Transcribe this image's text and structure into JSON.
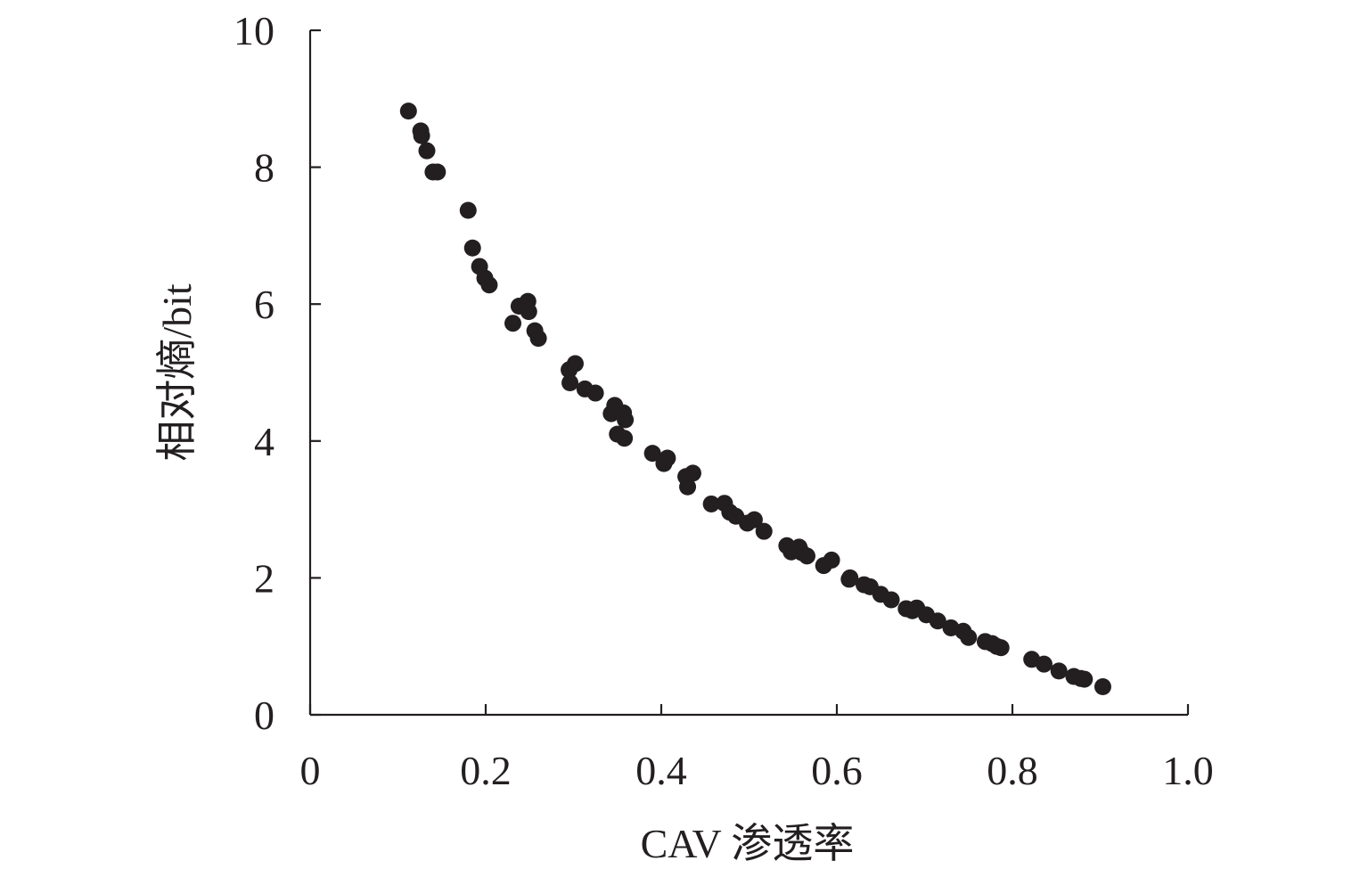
{
  "chart_data": {
    "type": "scatter",
    "title": "",
    "xlabel": "CAV 渗透率",
    "ylabel": "相对熵/bit",
    "xlim": [
      0,
      1.0
    ],
    "ylim": [
      0,
      10
    ],
    "xticks": [
      "0",
      "0.2",
      "0.4",
      "0.6",
      "0.8",
      "1.0"
    ],
    "xtick_values": [
      0,
      0.2,
      0.4,
      0.6,
      0.8,
      1.0
    ],
    "yticks": [
      "0",
      "2",
      "4",
      "6",
      "8",
      "10"
    ],
    "ytick_values": [
      0,
      2,
      4,
      6,
      8,
      10
    ],
    "grid": false,
    "legend": "none",
    "marker_color": "#231f20",
    "series": [
      {
        "points": [
          [
            0.112,
            8.82
          ],
          [
            0.126,
            8.53
          ],
          [
            0.127,
            8.46
          ],
          [
            0.133,
            8.24
          ],
          [
            0.14,
            7.93
          ],
          [
            0.145,
            7.93
          ],
          [
            0.18,
            7.37
          ],
          [
            0.185,
            6.82
          ],
          [
            0.193,
            6.55
          ],
          [
            0.199,
            6.38
          ],
          [
            0.204,
            6.28
          ],
          [
            0.231,
            5.72
          ],
          [
            0.238,
            5.97
          ],
          [
            0.248,
            6.04
          ],
          [
            0.249,
            5.89
          ],
          [
            0.256,
            5.61
          ],
          [
            0.26,
            5.5
          ],
          [
            0.295,
            5.04
          ],
          [
            0.302,
            5.13
          ],
          [
            0.296,
            4.85
          ],
          [
            0.313,
            4.76
          ],
          [
            0.325,
            4.7
          ],
          [
            0.343,
            4.4
          ],
          [
            0.347,
            4.52
          ],
          [
            0.35,
            4.1
          ],
          [
            0.357,
            4.41
          ],
          [
            0.359,
            4.31
          ],
          [
            0.358,
            4.04
          ],
          [
            0.39,
            3.82
          ],
          [
            0.403,
            3.67
          ],
          [
            0.407,
            3.75
          ],
          [
            0.428,
            3.48
          ],
          [
            0.43,
            3.33
          ],
          [
            0.436,
            3.53
          ],
          [
            0.457,
            3.08
          ],
          [
            0.472,
            3.09
          ],
          [
            0.478,
            2.96
          ],
          [
            0.485,
            2.9
          ],
          [
            0.498,
            2.8
          ],
          [
            0.506,
            2.85
          ],
          [
            0.517,
            2.68
          ],
          [
            0.543,
            2.47
          ],
          [
            0.548,
            2.38
          ],
          [
            0.557,
            2.45
          ],
          [
            0.56,
            2.37
          ],
          [
            0.566,
            2.32
          ],
          [
            0.585,
            2.18
          ],
          [
            0.594,
            2.26
          ],
          [
            0.614,
            1.98
          ],
          [
            0.615,
            2.0
          ],
          [
            0.631,
            1.9
          ],
          [
            0.638,
            1.87
          ],
          [
            0.65,
            1.76
          ],
          [
            0.662,
            1.68
          ],
          [
            0.679,
            1.55
          ],
          [
            0.686,
            1.52
          ],
          [
            0.691,
            1.56
          ],
          [
            0.702,
            1.46
          ],
          [
            0.715,
            1.37
          ],
          [
            0.73,
            1.27
          ],
          [
            0.744,
            1.22
          ],
          [
            0.75,
            1.13
          ],
          [
            0.769,
            1.07
          ],
          [
            0.777,
            1.04
          ],
          [
            0.782,
            1.0
          ],
          [
            0.787,
            0.98
          ],
          [
            0.822,
            0.81
          ],
          [
            0.836,
            0.74
          ],
          [
            0.853,
            0.64
          ],
          [
            0.87,
            0.56
          ],
          [
            0.878,
            0.53
          ],
          [
            0.882,
            0.52
          ],
          [
            0.903,
            0.41
          ]
        ]
      }
    ]
  }
}
